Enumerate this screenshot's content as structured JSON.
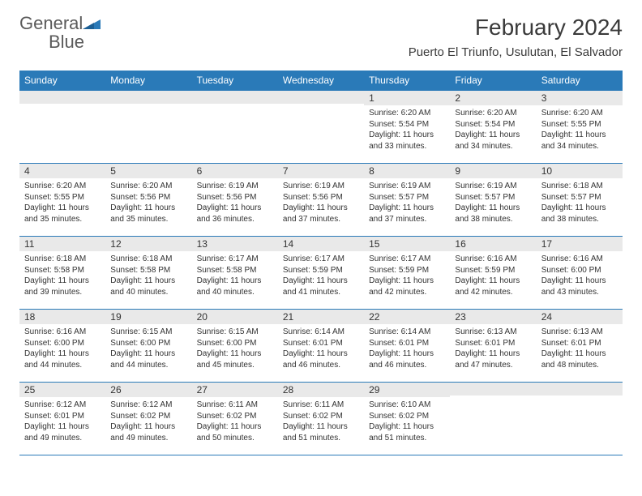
{
  "brand": {
    "word1": "General",
    "word2": "Blue"
  },
  "header": {
    "title": "February 2024",
    "location": "Puerto El Triunfo, Usulutan, El Salvador"
  },
  "colors": {
    "accent": "#2a7ab8",
    "header_text": "#ffffff",
    "daynum_bg": "#e9e9e9",
    "text": "#333333",
    "background": "#ffffff"
  },
  "day_headers": [
    "Sunday",
    "Monday",
    "Tuesday",
    "Wednesday",
    "Thursday",
    "Friday",
    "Saturday"
  ],
  "weeks": [
    [
      {
        "n": "",
        "sr": "",
        "ss": "",
        "dl1": "",
        "dl2": ""
      },
      {
        "n": "",
        "sr": "",
        "ss": "",
        "dl1": "",
        "dl2": ""
      },
      {
        "n": "",
        "sr": "",
        "ss": "",
        "dl1": "",
        "dl2": ""
      },
      {
        "n": "",
        "sr": "",
        "ss": "",
        "dl1": "",
        "dl2": ""
      },
      {
        "n": "1",
        "sr": "Sunrise: 6:20 AM",
        "ss": "Sunset: 5:54 PM",
        "dl1": "Daylight: 11 hours",
        "dl2": "and 33 minutes."
      },
      {
        "n": "2",
        "sr": "Sunrise: 6:20 AM",
        "ss": "Sunset: 5:54 PM",
        "dl1": "Daylight: 11 hours",
        "dl2": "and 34 minutes."
      },
      {
        "n": "3",
        "sr": "Sunrise: 6:20 AM",
        "ss": "Sunset: 5:55 PM",
        "dl1": "Daylight: 11 hours",
        "dl2": "and 34 minutes."
      }
    ],
    [
      {
        "n": "4",
        "sr": "Sunrise: 6:20 AM",
        "ss": "Sunset: 5:55 PM",
        "dl1": "Daylight: 11 hours",
        "dl2": "and 35 minutes."
      },
      {
        "n": "5",
        "sr": "Sunrise: 6:20 AM",
        "ss": "Sunset: 5:56 PM",
        "dl1": "Daylight: 11 hours",
        "dl2": "and 35 minutes."
      },
      {
        "n": "6",
        "sr": "Sunrise: 6:19 AM",
        "ss": "Sunset: 5:56 PM",
        "dl1": "Daylight: 11 hours",
        "dl2": "and 36 minutes."
      },
      {
        "n": "7",
        "sr": "Sunrise: 6:19 AM",
        "ss": "Sunset: 5:56 PM",
        "dl1": "Daylight: 11 hours",
        "dl2": "and 37 minutes."
      },
      {
        "n": "8",
        "sr": "Sunrise: 6:19 AM",
        "ss": "Sunset: 5:57 PM",
        "dl1": "Daylight: 11 hours",
        "dl2": "and 37 minutes."
      },
      {
        "n": "9",
        "sr": "Sunrise: 6:19 AM",
        "ss": "Sunset: 5:57 PM",
        "dl1": "Daylight: 11 hours",
        "dl2": "and 38 minutes."
      },
      {
        "n": "10",
        "sr": "Sunrise: 6:18 AM",
        "ss": "Sunset: 5:57 PM",
        "dl1": "Daylight: 11 hours",
        "dl2": "and 38 minutes."
      }
    ],
    [
      {
        "n": "11",
        "sr": "Sunrise: 6:18 AM",
        "ss": "Sunset: 5:58 PM",
        "dl1": "Daylight: 11 hours",
        "dl2": "and 39 minutes."
      },
      {
        "n": "12",
        "sr": "Sunrise: 6:18 AM",
        "ss": "Sunset: 5:58 PM",
        "dl1": "Daylight: 11 hours",
        "dl2": "and 40 minutes."
      },
      {
        "n": "13",
        "sr": "Sunrise: 6:17 AM",
        "ss": "Sunset: 5:58 PM",
        "dl1": "Daylight: 11 hours",
        "dl2": "and 40 minutes."
      },
      {
        "n": "14",
        "sr": "Sunrise: 6:17 AM",
        "ss": "Sunset: 5:59 PM",
        "dl1": "Daylight: 11 hours",
        "dl2": "and 41 minutes."
      },
      {
        "n": "15",
        "sr": "Sunrise: 6:17 AM",
        "ss": "Sunset: 5:59 PM",
        "dl1": "Daylight: 11 hours",
        "dl2": "and 42 minutes."
      },
      {
        "n": "16",
        "sr": "Sunrise: 6:16 AM",
        "ss": "Sunset: 5:59 PM",
        "dl1": "Daylight: 11 hours",
        "dl2": "and 42 minutes."
      },
      {
        "n": "17",
        "sr": "Sunrise: 6:16 AM",
        "ss": "Sunset: 6:00 PM",
        "dl1": "Daylight: 11 hours",
        "dl2": "and 43 minutes."
      }
    ],
    [
      {
        "n": "18",
        "sr": "Sunrise: 6:16 AM",
        "ss": "Sunset: 6:00 PM",
        "dl1": "Daylight: 11 hours",
        "dl2": "and 44 minutes."
      },
      {
        "n": "19",
        "sr": "Sunrise: 6:15 AM",
        "ss": "Sunset: 6:00 PM",
        "dl1": "Daylight: 11 hours",
        "dl2": "and 44 minutes."
      },
      {
        "n": "20",
        "sr": "Sunrise: 6:15 AM",
        "ss": "Sunset: 6:00 PM",
        "dl1": "Daylight: 11 hours",
        "dl2": "and 45 minutes."
      },
      {
        "n": "21",
        "sr": "Sunrise: 6:14 AM",
        "ss": "Sunset: 6:01 PM",
        "dl1": "Daylight: 11 hours",
        "dl2": "and 46 minutes."
      },
      {
        "n": "22",
        "sr": "Sunrise: 6:14 AM",
        "ss": "Sunset: 6:01 PM",
        "dl1": "Daylight: 11 hours",
        "dl2": "and 46 minutes."
      },
      {
        "n": "23",
        "sr": "Sunrise: 6:13 AM",
        "ss": "Sunset: 6:01 PM",
        "dl1": "Daylight: 11 hours",
        "dl2": "and 47 minutes."
      },
      {
        "n": "24",
        "sr": "Sunrise: 6:13 AM",
        "ss": "Sunset: 6:01 PM",
        "dl1": "Daylight: 11 hours",
        "dl2": "and 48 minutes."
      }
    ],
    [
      {
        "n": "25",
        "sr": "Sunrise: 6:12 AM",
        "ss": "Sunset: 6:01 PM",
        "dl1": "Daylight: 11 hours",
        "dl2": "and 49 minutes."
      },
      {
        "n": "26",
        "sr": "Sunrise: 6:12 AM",
        "ss": "Sunset: 6:02 PM",
        "dl1": "Daylight: 11 hours",
        "dl2": "and 49 minutes."
      },
      {
        "n": "27",
        "sr": "Sunrise: 6:11 AM",
        "ss": "Sunset: 6:02 PM",
        "dl1": "Daylight: 11 hours",
        "dl2": "and 50 minutes."
      },
      {
        "n": "28",
        "sr": "Sunrise: 6:11 AM",
        "ss": "Sunset: 6:02 PM",
        "dl1": "Daylight: 11 hours",
        "dl2": "and 51 minutes."
      },
      {
        "n": "29",
        "sr": "Sunrise: 6:10 AM",
        "ss": "Sunset: 6:02 PM",
        "dl1": "Daylight: 11 hours",
        "dl2": "and 51 minutes."
      },
      {
        "n": "",
        "sr": "",
        "ss": "",
        "dl1": "",
        "dl2": ""
      },
      {
        "n": "",
        "sr": "",
        "ss": "",
        "dl1": "",
        "dl2": ""
      }
    ]
  ]
}
